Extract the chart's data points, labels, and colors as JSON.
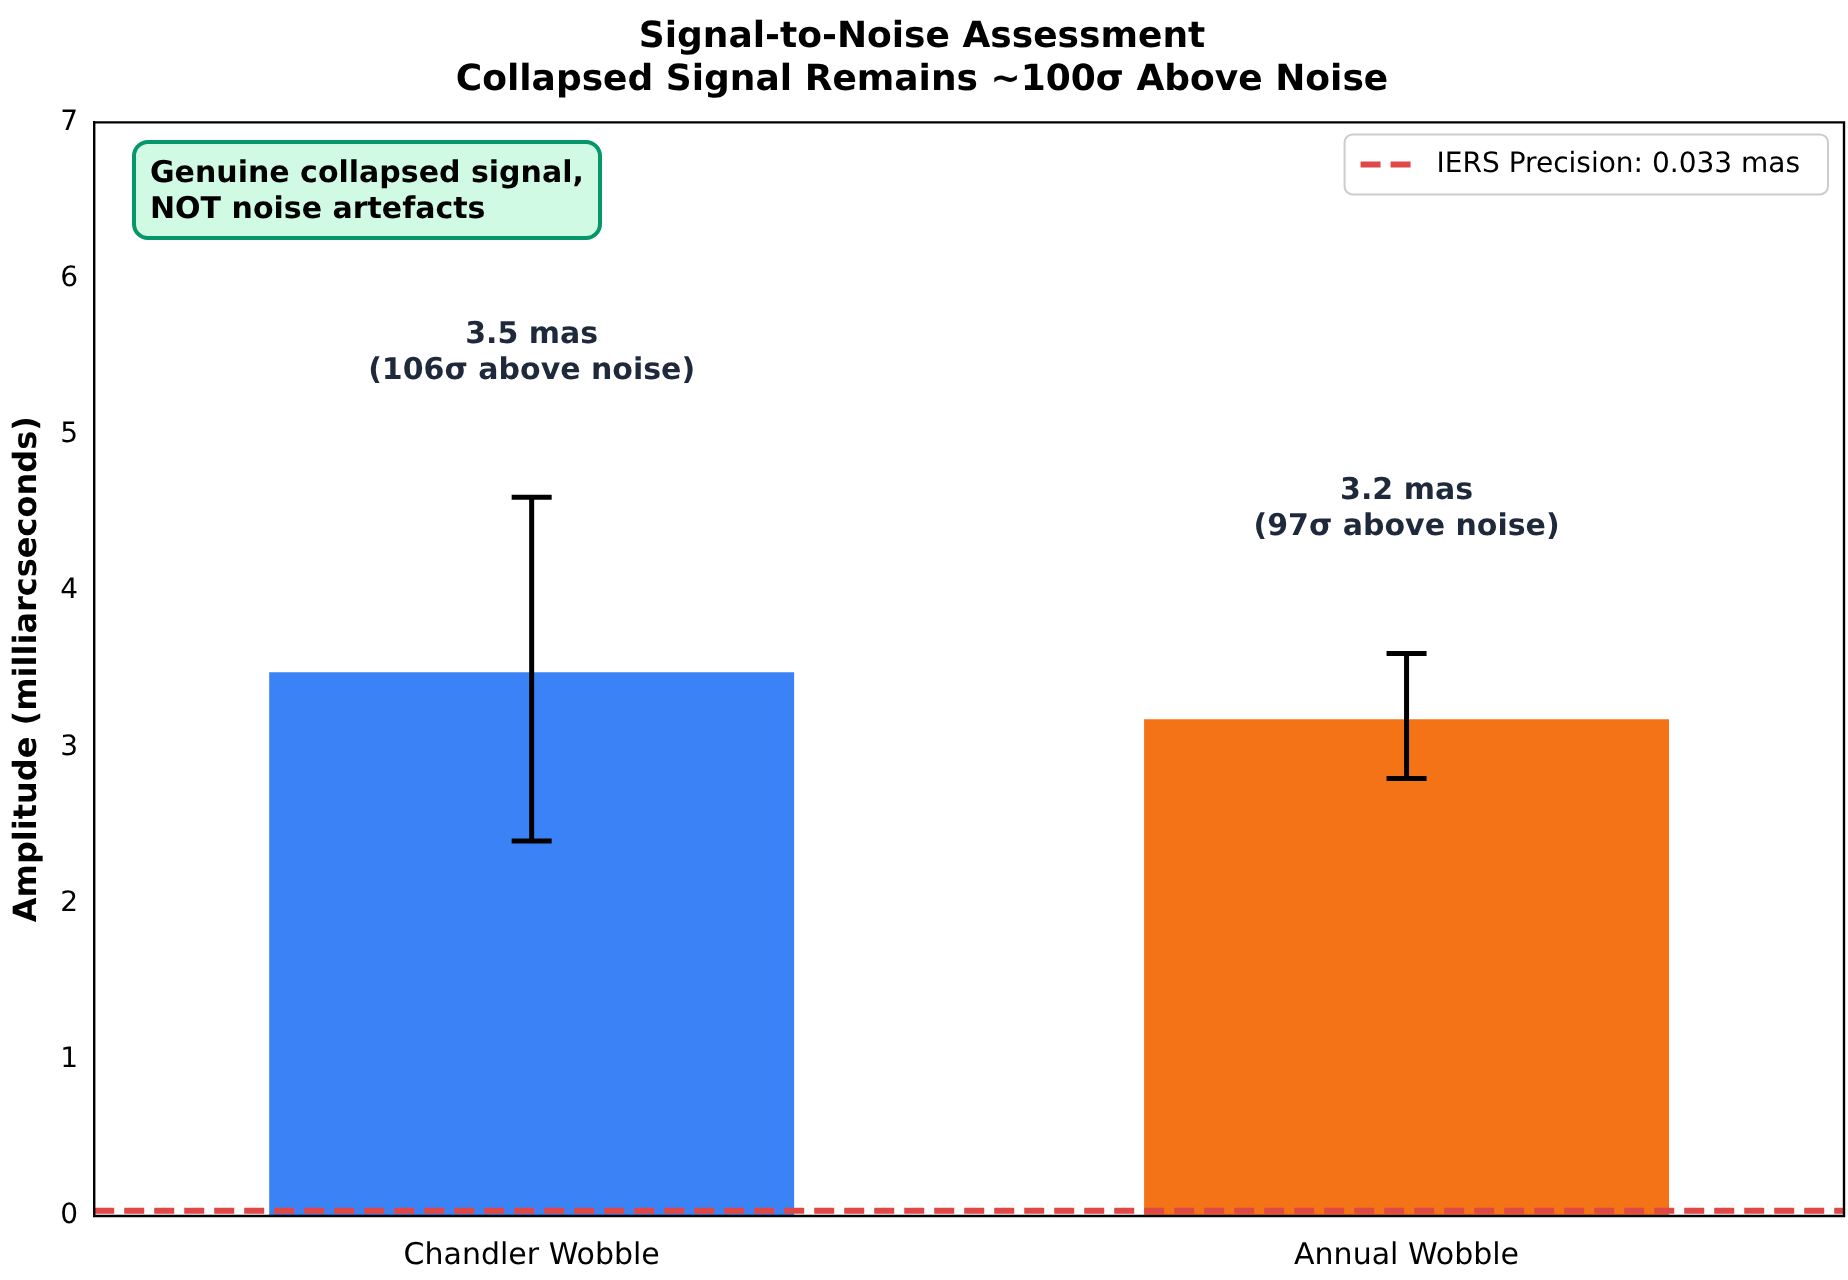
{
  "chart_data": {
    "type": "bar",
    "title": "Signal-to-Noise Assessment",
    "subtitle": "Collapsed Signal Remains ~100σ Above Noise",
    "ylabel": "Amplitude (milliarcseconds)",
    "categories": [
      "Chandler Wobble",
      "Annual Wobble"
    ],
    "values": [
      3.48,
      3.18
    ],
    "colors": [
      "#3b82f6",
      "#f47316"
    ],
    "errors": [
      [
        2.4,
        4.6
      ],
      [
        2.8,
        3.6
      ]
    ],
    "ylim": [
      0,
      7
    ],
    "yticks": [
      0,
      1,
      2,
      3,
      4,
      5,
      6,
      7
    ],
    "grid": false,
    "legend": "top right",
    "ref_lines": [
      {
        "axis": "y",
        "value": 0.033,
        "label": "IERS Precision: 0.033 mas",
        "color": "#e04848",
        "line_style": "dashed"
      }
    ],
    "annotations": [
      "3.5 mas\n(106σ above noise)",
      "3.2 mas\n(97σ above noise)",
      "Genuine collapsed signal,\nNOT noise artefacts"
    ]
  }
}
